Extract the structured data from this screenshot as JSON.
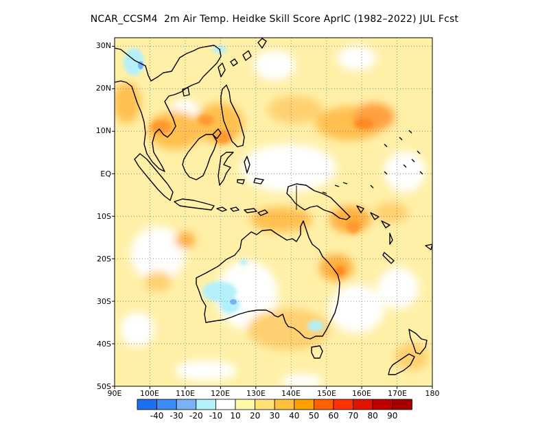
{
  "title": "NCAR_CCSM4  2m Air Temp. Heidke Skill Score AprIC (1982–2022) JUL Fcst",
  "map": {
    "lon_range": [
      90,
      180
    ],
    "lat_range": [
      -50,
      32
    ],
    "grid": "dotted",
    "x_ticks": [
      "90E",
      "100E",
      "110E",
      "120E",
      "130E",
      "140E",
      "150E",
      "160E",
      "170E",
      "180"
    ],
    "y_ticks": [
      "30N",
      "20N",
      "10N",
      "EQ",
      "10S",
      "20S",
      "30S",
      "40S",
      "50S"
    ]
  },
  "colorbar": {
    "labels": [
      "-40",
      "-30",
      "-20",
      "-10",
      "10",
      "20",
      "30",
      "40",
      "50",
      "60",
      "70",
      "80",
      "90"
    ],
    "colors": [
      "#1e6ef0",
      "#3c8cf5",
      "#78b4f5",
      "#b4f0fa",
      "#ffffff",
      "#fffaaa",
      "#ffe178",
      "#ffc03c",
      "#ffa000",
      "#ff6000",
      "#ff3200",
      "#e11400",
      "#c00000",
      "#a50000"
    ]
  },
  "colors": {
    "land_outline": "#000000",
    "background": "#ffffff"
  }
}
